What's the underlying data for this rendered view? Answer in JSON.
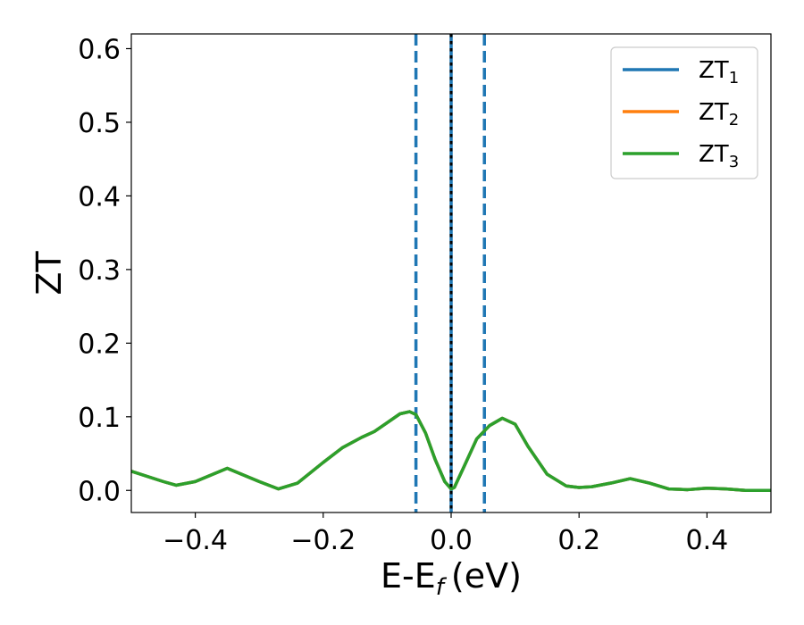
{
  "chart_data": {
    "type": "line",
    "title": "",
    "xlabel": "E-E",
    "xlabel_sub": "f",
    "xlabel_unit": "(eV)",
    "ylabel": "ZT",
    "xlim": [
      -0.5,
      0.5
    ],
    "ylim": [
      -0.03,
      0.62
    ],
    "xticks": [
      -0.4,
      -0.2,
      0.0,
      0.2,
      0.4
    ],
    "xtick_labels": [
      "−0.4",
      "−0.2",
      "0.0",
      "0.2",
      "0.4"
    ],
    "yticks": [
      0.0,
      0.1,
      0.2,
      0.3,
      0.4,
      0.5,
      0.6
    ],
    "ytick_labels": [
      "0.0",
      "0.1",
      "0.2",
      "0.3",
      "0.4",
      "0.5",
      "0.6"
    ],
    "grid": false,
    "legend_position": "top-right",
    "series": [
      {
        "name": "ZT",
        "name_sub": "1",
        "color": "#1f77b4",
        "x": [
          -0.5,
          -0.45,
          -0.43,
          -0.4,
          -0.35,
          -0.3,
          -0.27,
          -0.24,
          -0.2,
          -0.17,
          -0.14,
          -0.12,
          -0.1,
          -0.08,
          -0.065,
          -0.055,
          -0.04,
          -0.025,
          -0.01,
          0.0,
          0.005,
          0.02,
          0.04,
          0.06,
          0.08,
          0.1,
          0.12,
          0.15,
          0.18,
          0.2,
          0.22,
          0.25,
          0.28,
          0.31,
          0.34,
          0.37,
          0.4,
          0.43,
          0.46,
          0.5
        ],
        "y": [
          0.026,
          0.012,
          0.007,
          0.012,
          0.03,
          0.012,
          0.002,
          0.01,
          0.038,
          0.058,
          0.072,
          0.08,
          0.092,
          0.104,
          0.107,
          0.103,
          0.078,
          0.042,
          0.012,
          0.002,
          0.004,
          0.032,
          0.07,
          0.088,
          0.098,
          0.09,
          0.06,
          0.022,
          0.006,
          0.004,
          0.005,
          0.01,
          0.016,
          0.01,
          0.002,
          0.001,
          0.003,
          0.002,
          0.0,
          0.0
        ]
      },
      {
        "name": "ZT",
        "name_sub": "2",
        "color": "#ff7f0e",
        "x": [
          -0.5,
          -0.45,
          -0.43,
          -0.4,
          -0.35,
          -0.3,
          -0.27,
          -0.24,
          -0.2,
          -0.17,
          -0.14,
          -0.12,
          -0.1,
          -0.08,
          -0.065,
          -0.055,
          -0.04,
          -0.025,
          -0.01,
          0.0,
          0.005,
          0.02,
          0.04,
          0.06,
          0.08,
          0.1,
          0.12,
          0.15,
          0.18,
          0.2,
          0.22,
          0.25,
          0.28,
          0.31,
          0.34,
          0.37,
          0.4,
          0.43,
          0.46,
          0.5
        ],
        "y": [
          0.026,
          0.012,
          0.007,
          0.012,
          0.03,
          0.012,
          0.002,
          0.01,
          0.038,
          0.058,
          0.072,
          0.08,
          0.092,
          0.104,
          0.107,
          0.103,
          0.078,
          0.042,
          0.012,
          0.002,
          0.004,
          0.032,
          0.07,
          0.088,
          0.098,
          0.09,
          0.06,
          0.022,
          0.006,
          0.004,
          0.005,
          0.01,
          0.016,
          0.01,
          0.002,
          0.001,
          0.003,
          0.002,
          0.0,
          0.0
        ]
      },
      {
        "name": "ZT",
        "name_sub": "3",
        "color": "#2ca02c",
        "x": [
          -0.5,
          -0.45,
          -0.43,
          -0.4,
          -0.35,
          -0.3,
          -0.27,
          -0.24,
          -0.2,
          -0.17,
          -0.14,
          -0.12,
          -0.1,
          -0.08,
          -0.065,
          -0.055,
          -0.04,
          -0.025,
          -0.01,
          0.0,
          0.005,
          0.02,
          0.04,
          0.06,
          0.08,
          0.1,
          0.12,
          0.15,
          0.18,
          0.2,
          0.22,
          0.25,
          0.28,
          0.31,
          0.34,
          0.37,
          0.4,
          0.43,
          0.46,
          0.5
        ],
        "y": [
          0.026,
          0.012,
          0.007,
          0.012,
          0.03,
          0.012,
          0.002,
          0.01,
          0.038,
          0.058,
          0.072,
          0.08,
          0.092,
          0.104,
          0.107,
          0.103,
          0.078,
          0.042,
          0.012,
          0.002,
          0.004,
          0.032,
          0.07,
          0.088,
          0.098,
          0.09,
          0.06,
          0.022,
          0.006,
          0.004,
          0.005,
          0.01,
          0.016,
          0.01,
          0.002,
          0.001,
          0.003,
          0.002,
          0.0,
          0.0
        ]
      }
    ],
    "vlines": [
      {
        "x": -0.055,
        "style": "dashed",
        "color": "#1f77b4"
      },
      {
        "x": 0.0,
        "style": "solid",
        "color": "#1f77b4"
      },
      {
        "x": 0.0,
        "style": "dotted",
        "color": "#000000"
      },
      {
        "x": 0.052,
        "style": "dashed",
        "color": "#1f77b4"
      }
    ]
  }
}
